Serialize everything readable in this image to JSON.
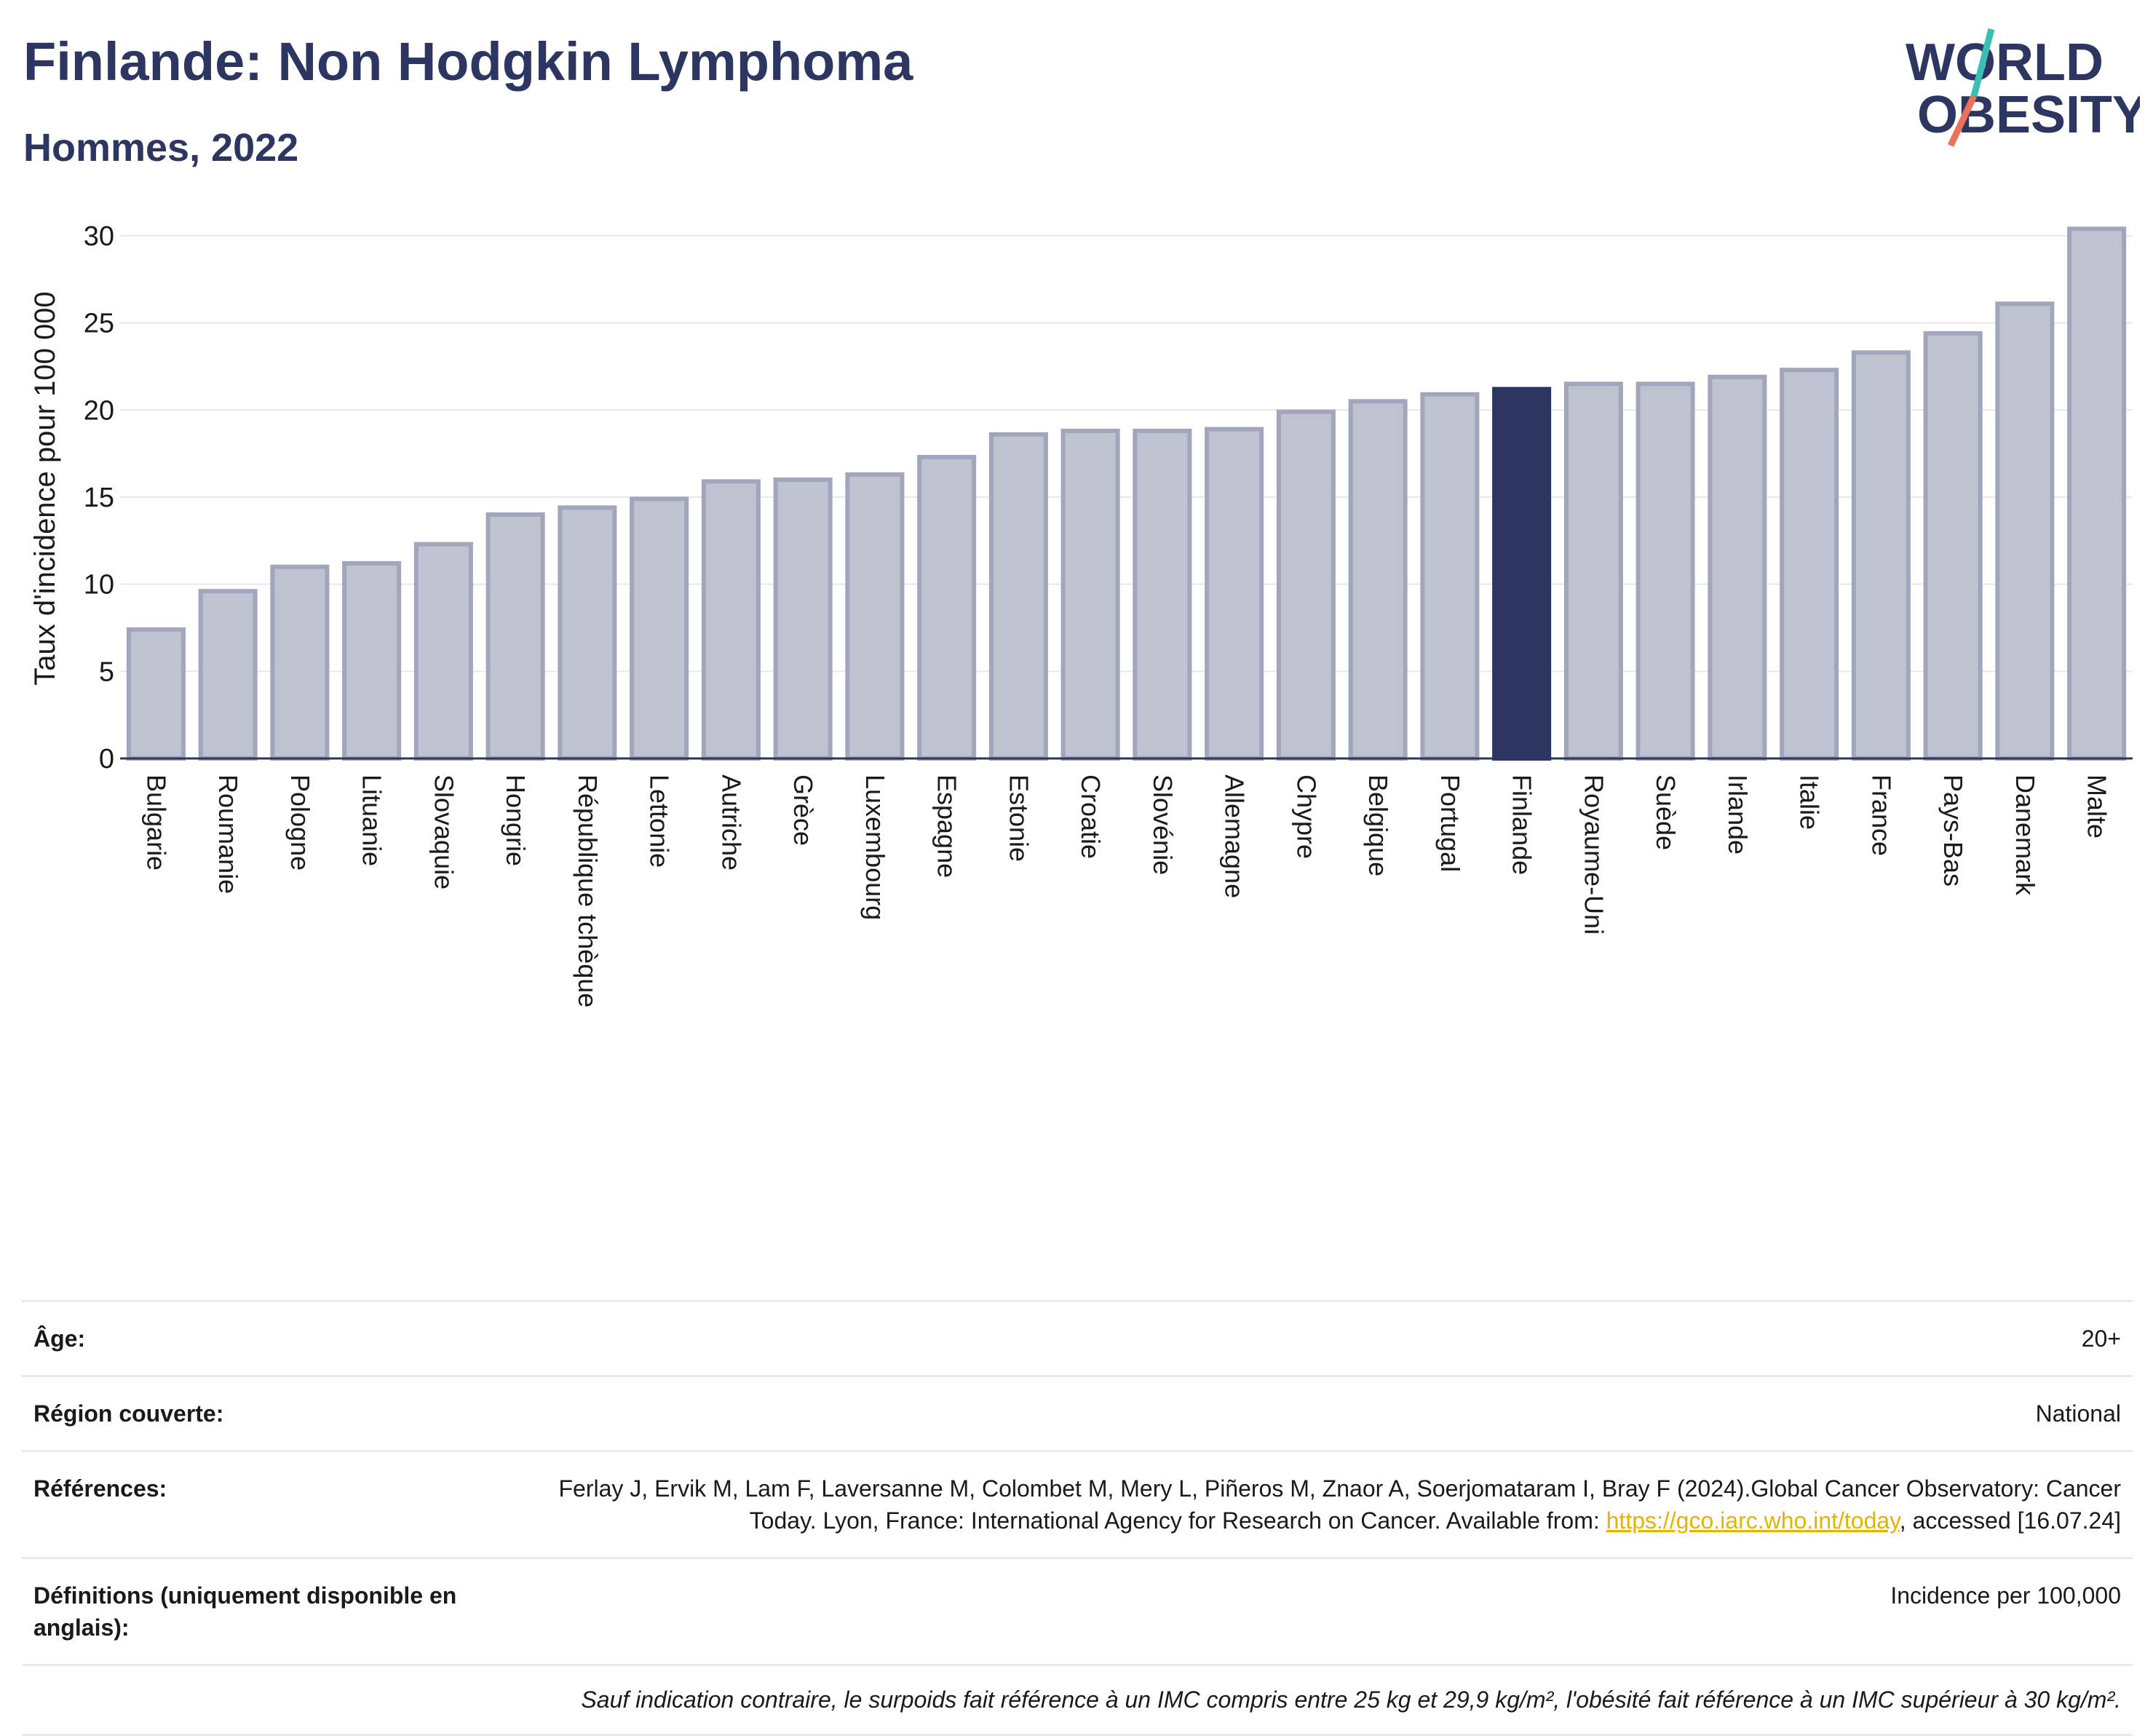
{
  "header": {
    "title": "Finlande: Non Hodgkin Lymphoma",
    "subtitle": "Hommes, 2022"
  },
  "logo": {
    "line1": "WORLD",
    "line2": "OBESITY"
  },
  "chart_data": {
    "type": "bar",
    "ylabel": "Taux d'incidence pour 100 000",
    "xlabel": "",
    "ylim": [
      0,
      31
    ],
    "yticks": [
      0,
      5,
      10,
      15,
      20,
      25,
      30
    ],
    "grid": true,
    "highlight": "Finlande",
    "colors": {
      "bar": "#bfc2cf",
      "bar_edge": "#a2a6bd",
      "highlight": "#2d3561",
      "grid": "#e6e8ed"
    },
    "categories": [
      "Bulgarie",
      "Roumanie",
      "Pologne",
      "Lituanie",
      "Slovaquie",
      "Hongrie",
      "République tchèque",
      "Lettonie",
      "Autriche",
      "Grèce",
      "Luxembourg",
      "Espagne",
      "Estonie",
      "Croatie",
      "Slovénie",
      "Allemagne",
      "Chypre",
      "Belgique",
      "Portugal",
      "Finlande",
      "Royaume-Uni",
      "Suède",
      "Irlande",
      "Italie",
      "France",
      "Pays-Bas",
      "Danemark",
      "Malte"
    ],
    "values": [
      7.4,
      9.6,
      11.0,
      11.2,
      12.3,
      14.0,
      14.4,
      14.9,
      15.9,
      16.0,
      16.3,
      17.3,
      18.6,
      18.8,
      18.8,
      18.9,
      19.9,
      20.5,
      20.9,
      21.2,
      21.5,
      21.5,
      21.9,
      22.3,
      23.3,
      24.4,
      26.1,
      30.4
    ]
  },
  "info": {
    "age_label": "Âge:",
    "age_value": "20+",
    "region_label": "Région couverte:",
    "region_value": "National",
    "references_label": "Références:",
    "references_text": "Ferlay J, Ervik M, Lam F, Laversanne M, Colombet M, Mery L, Piñeros M, Znaor A, Soerjomataram I, Bray F (2024).Global Cancer Observatory: Cancer Today. Lyon, France: International Agency for Research on Cancer. Available from: ",
    "references_link": "https://gco.iarc.who.int/today",
    "references_suffix": ", accessed [16.07.24]",
    "definitions_label": "Définitions (uniquement disponible en anglais):",
    "definitions_value": "Incidence per 100,000",
    "note": "Sauf indication contraire, le surpoids fait référence à un IMC compris entre 25 kg et 29,9 kg/m², l'obésité fait référence à un IMC supérieur à 30 kg/m²."
  }
}
